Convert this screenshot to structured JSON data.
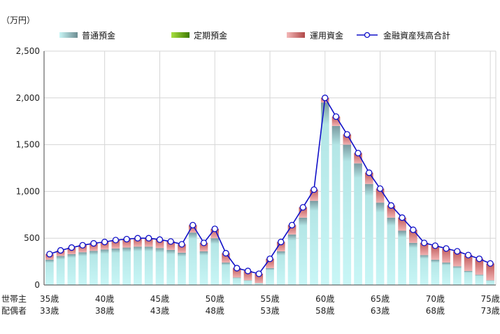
{
  "chart_data": {
    "type": "bar",
    "unit_label": "（万円）",
    "row_labels": [
      "世帯主",
      "配偶者"
    ],
    "x_ticks_primary": [
      "35歳",
      "40歳",
      "45歳",
      "50歳",
      "55歳",
      "60歳",
      "65歳",
      "70歳",
      "75歳"
    ],
    "x_ticks_secondary": [
      "33歳",
      "38歳",
      "43歳",
      "48歳",
      "53歳",
      "58歳",
      "63歳",
      "68歳",
      "73歳"
    ],
    "y_ticks": [
      "0",
      "500",
      "1,000",
      "1,500",
      "2,000",
      "2,500"
    ],
    "ylim": [
      0,
      2500
    ],
    "categories": [
      "35",
      "36",
      "37",
      "38",
      "39",
      "40",
      "41",
      "42",
      "43",
      "44",
      "45",
      "46",
      "47",
      "48",
      "49",
      "50",
      "51",
      "52",
      "53",
      "54",
      "55",
      "56",
      "57",
      "58",
      "59",
      "60",
      "61",
      "62",
      "63",
      "64",
      "65",
      "66",
      "67",
      "68",
      "69",
      "70",
      "71",
      "72",
      "73",
      "74",
      "75"
    ],
    "series": [
      {
        "name": "普通預金",
        "values": [
          270,
          310,
          330,
          350,
          365,
          380,
          390,
          400,
          410,
          410,
          395,
          375,
          345,
          560,
          360,
          500,
          240,
          80,
          50,
          20,
          180,
          360,
          540,
          720,
          900,
          1950,
          1700,
          1500,
          1300,
          1080,
          880,
          720,
          580,
          450,
          320,
          270,
          240,
          200,
          150,
          110,
          50
        ]
      },
      {
        "name": "定期預金",
        "values": [
          0,
          0,
          0,
          0,
          0,
          0,
          0,
          0,
          0,
          0,
          0,
          0,
          0,
          0,
          0,
          0,
          0,
          0,
          0,
          0,
          0,
          0,
          0,
          0,
          0,
          0,
          0,
          0,
          0,
          0,
          0,
          0,
          0,
          0,
          0,
          0,
          0,
          0,
          0,
          0,
          0
        ]
      },
      {
        "name": "運用資金",
        "values": [
          60,
          60,
          70,
          75,
          80,
          80,
          90,
          90,
          90,
          90,
          90,
          90,
          90,
          80,
          90,
          100,
          100,
          100,
          100,
          100,
          100,
          100,
          100,
          110,
          120,
          50,
          100,
          110,
          110,
          120,
          150,
          130,
          140,
          140,
          130,
          150,
          150,
          160,
          170,
          170,
          180
        ]
      },
      {
        "name": "金融資産残高合計",
        "values": [
          330,
          370,
          400,
          425,
          445,
          460,
          480,
          490,
          500,
          500,
          485,
          465,
          435,
          640,
          450,
          600,
          340,
          180,
          150,
          120,
          280,
          460,
          640,
          830,
          1020,
          2000,
          1800,
          1610,
          1410,
          1200,
          1030,
          850,
          720,
          590,
          450,
          420,
          390,
          360,
          320,
          280,
          230
        ]
      }
    ],
    "colors": {
      "deposit_top": "#7a9aa0",
      "deposit_bottom": "#bff4f4",
      "fixed": "#70b000",
      "investment_top": "#c86868",
      "investment_bottom": "#f4b8b8",
      "line": "#1010c8"
    },
    "grid": true,
    "legend_position": "top"
  }
}
